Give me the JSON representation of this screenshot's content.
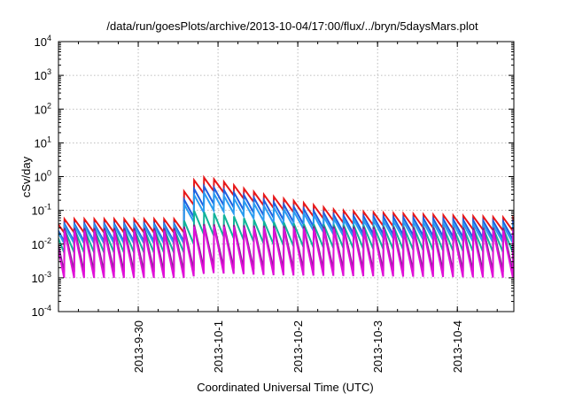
{
  "chart_data": {
    "type": "line",
    "title": "/data/run/goesPlots/archive/2013-10-04/17:00/flux/../bryn/5daysMars.plot",
    "xlabel": "Coordinated Universal Time (UTC)",
    "ylabel": "cSv/day",
    "yscale": "log",
    "ylim": [
      0.0001,
      10000
    ],
    "y_ticks": [
      {
        "value": 0.0001,
        "base": "10",
        "exp": "-4"
      },
      {
        "value": 0.001,
        "base": "10",
        "exp": "-3"
      },
      {
        "value": 0.01,
        "base": "10",
        "exp": "-2"
      },
      {
        "value": 0.1,
        "base": "10",
        "exp": "-1"
      },
      {
        "value": 1,
        "base": "10",
        "exp": "0"
      },
      {
        "value": 10,
        "base": "10",
        "exp": "1"
      },
      {
        "value": 100,
        "base": "10",
        "exp": "2"
      },
      {
        "value": 1000,
        "base": "10",
        "exp": "3"
      },
      {
        "value": 10000,
        "base": "10",
        "exp": "4"
      }
    ],
    "xlim": [
      "2013-09-29 00:00",
      "2013-10-04 17:00"
    ],
    "x_ticks": [
      "2013-9-30",
      "2013-10-1",
      "2013-10-2",
      "2013-10-3",
      "2013-10-4"
    ],
    "grid": true,
    "legend": "none",
    "cycle_hours": 3,
    "series": [
      {
        "color": "#e8181a",
        "points": [
          [
            "2013-09-29 00:00",
            0.055
          ],
          [
            "2013-09-30 12:00",
            0.055
          ],
          [
            "2013-09-30 14:00",
            0.45
          ],
          [
            "2013-09-30 18:00",
            1.0
          ],
          [
            "2013-10-01 00:00",
            0.8
          ],
          [
            "2013-10-01 12:00",
            0.32
          ],
          [
            "2013-10-02 00:00",
            0.18
          ],
          [
            "2013-10-02 12:00",
            0.1
          ],
          [
            "2013-10-03 00:00",
            0.085
          ],
          [
            "2013-10-04 17:00",
            0.06
          ]
        ],
        "trough_ratio": 0.4
      },
      {
        "color": "#1f5fe0",
        "points": [
          [
            "2013-09-29 00:00",
            0.04
          ],
          [
            "2013-09-30 12:00",
            0.04
          ],
          [
            "2013-09-30 14:00",
            0.25
          ],
          [
            "2013-09-30 18:00",
            0.55
          ],
          [
            "2013-10-01 00:00",
            0.45
          ],
          [
            "2013-10-01 12:00",
            0.22
          ],
          [
            "2013-10-02 00:00",
            0.12
          ],
          [
            "2013-10-02 12:00",
            0.07
          ],
          [
            "2013-10-03 00:00",
            0.065
          ],
          [
            "2013-10-04 17:00",
            0.045
          ]
        ],
        "trough_ratio": 0.3
      },
      {
        "color": "#2a9cf0",
        "points": [
          [
            "2013-09-29 00:00",
            0.035
          ],
          [
            "2013-09-30 12:00",
            0.035
          ],
          [
            "2013-09-30 14:00",
            0.18
          ],
          [
            "2013-09-30 18:00",
            0.35
          ],
          [
            "2013-10-01 00:00",
            0.3
          ],
          [
            "2013-10-01 12:00",
            0.15
          ],
          [
            "2013-10-02 00:00",
            0.09
          ],
          [
            "2013-10-02 12:00",
            0.055
          ],
          [
            "2013-10-03 00:00",
            0.05
          ],
          [
            "2013-10-04 17:00",
            0.035
          ]
        ],
        "trough_ratio": 0.3
      },
      {
        "color": "#12b39a",
        "points": [
          [
            "2013-09-29 00:00",
            0.028
          ],
          [
            "2013-09-30 12:00",
            0.028
          ],
          [
            "2013-09-30 16:00",
            0.1
          ],
          [
            "2013-10-01 00:00",
            0.08
          ],
          [
            "2013-10-01 12:00",
            0.05
          ],
          [
            "2013-10-02 00:00",
            0.04
          ],
          [
            "2013-10-03 00:00",
            0.035
          ],
          [
            "2013-10-04 17:00",
            0.028
          ]
        ],
        "trough_ratio": 0.2
      },
      {
        "color": "#7a2a8a",
        "points": [
          [
            "2013-09-29 00:00",
            0.03
          ],
          [
            "2013-09-30 12:00",
            0.03
          ],
          [
            "2013-09-30 18:00",
            0.04
          ],
          [
            "2013-10-01 12:00",
            0.035
          ],
          [
            "2013-10-04 17:00",
            0.03
          ]
        ],
        "trough_ratio": 0.05
      },
      {
        "color": "#e010d8",
        "points": [
          [
            "2013-09-29 00:00",
            0.025
          ],
          [
            "2013-09-30 12:00",
            0.025
          ],
          [
            "2013-09-30 18:00",
            0.035
          ],
          [
            "2013-10-01 12:00",
            0.03
          ],
          [
            "2013-10-04 17:00",
            0.025
          ]
        ],
        "trough_ratio": 0.04
      }
    ]
  }
}
